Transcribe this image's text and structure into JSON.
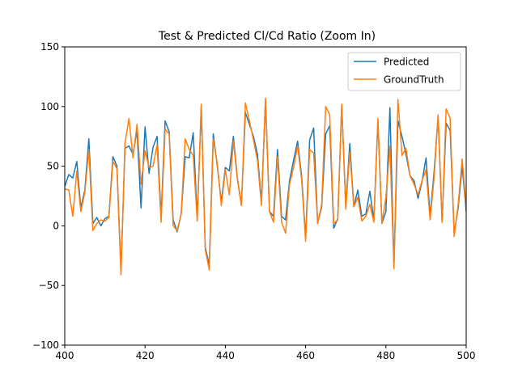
{
  "chart_data": {
    "type": "line",
    "title": "Test & Predicted Cl/Cd Ratio (Zoom In)",
    "xlabel": "",
    "ylabel": "",
    "xlim": [
      400,
      500
    ],
    "ylim": [
      -100,
      150
    ],
    "xticks": [
      400,
      420,
      440,
      460,
      480,
      500
    ],
    "yticks": [
      -100,
      -50,
      0,
      50,
      100,
      150
    ],
    "grid": false,
    "legend_position": "top-right",
    "x": [
      400,
      401,
      402,
      403,
      404,
      405,
      406,
      407,
      408,
      409,
      410,
      411,
      412,
      413,
      414,
      415,
      416,
      417,
      418,
      419,
      420,
      421,
      422,
      423,
      424,
      425,
      426,
      427,
      428,
      429,
      430,
      431,
      432,
      433,
      434,
      435,
      436,
      437,
      438,
      439,
      440,
      441,
      442,
      443,
      444,
      445,
      446,
      447,
      448,
      449,
      450,
      451,
      452,
      453,
      454,
      455,
      456,
      457,
      458,
      459,
      460,
      461,
      462,
      463,
      464,
      465,
      466,
      467,
      468,
      469,
      470,
      471,
      472,
      473,
      474,
      475,
      476,
      477,
      478,
      479,
      480,
      481,
      482,
      483,
      484,
      485,
      486,
      487,
      488,
      489,
      490,
      491,
      492,
      493,
      494,
      495,
      496,
      497,
      498,
      499,
      500
    ],
    "series": [
      {
        "name": "Predicted",
        "color": "#1f77b4",
        "values": [
          33,
          43,
          40,
          54,
          15,
          30,
          73,
          2,
          7,
          0,
          6,
          8,
          58,
          50,
          -38,
          65,
          67,
          60,
          80,
          15,
          83,
          44,
          66,
          75,
          8,
          88,
          79,
          5,
          -5,
          10,
          58,
          57,
          78,
          6,
          100,
          -18,
          -33,
          77,
          50,
          20,
          49,
          46,
          75,
          40,
          18,
          95,
          85,
          75,
          60,
          20,
          105,
          12,
          8,
          64,
          8,
          5,
          38,
          55,
          71,
          42,
          -10,
          72,
          82,
          2,
          16,
          77,
          84,
          -2,
          6,
          101,
          16,
          69,
          16,
          30,
          8,
          10,
          29,
          5,
          88,
          2,
          12,
          99,
          -34,
          88,
          75,
          60,
          42,
          38,
          23,
          37,
          57,
          8,
          45,
          92,
          3,
          86,
          80,
          -6,
          15,
          50,
          12
        ]
      },
      {
        "name": "GroundTruth",
        "color": "#ff7f0e",
        "values": [
          31,
          30,
          8,
          46,
          12,
          28,
          64,
          -4,
          2,
          5,
          4,
          7,
          54,
          48,
          -41,
          69,
          90,
          57,
          85,
          35,
          63,
          49,
          50,
          68,
          3,
          81,
          77,
          0,
          -4,
          10,
          73,
          64,
          59,
          4,
          102,
          -20,
          -37,
          73,
          52,
          17,
          47,
          26,
          71,
          39,
          17,
          103,
          88,
          72,
          55,
          17,
          107,
          12,
          3,
          58,
          3,
          -6,
          35,
          49,
          67,
          39,
          -13,
          64,
          61,
          2,
          18,
          100,
          93,
          2,
          5,
          102,
          14,
          62,
          16,
          24,
          4,
          8,
          18,
          3,
          90,
          2,
          24,
          67,
          -36,
          106,
          59,
          65,
          42,
          35,
          26,
          38,
          47,
          5,
          40,
          93,
          3,
          98,
          90,
          -9,
          18,
          56,
          15
        ]
      }
    ]
  }
}
